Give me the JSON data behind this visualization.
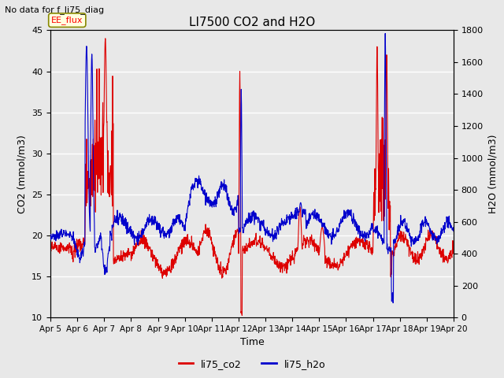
{
  "title": "LI7500 CO2 and H2O",
  "top_left_text": "No data for f_li75_diag",
  "xlabel": "Time",
  "ylabel_left": "CO2 (mmol/m3)",
  "ylabel_right": "H2O (mmol/m3)",
  "ylim_left": [
    10,
    45
  ],
  "ylim_right": [
    0,
    1800
  ],
  "yticks_left": [
    10,
    15,
    20,
    25,
    30,
    35,
    40,
    45
  ],
  "yticks_right": [
    0,
    200,
    400,
    600,
    800,
    1000,
    1200,
    1400,
    1600,
    1800
  ],
  "xticklabels": [
    "Apr 5",
    "Apr 6",
    "Apr 7",
    "Apr 8",
    "Apr 9",
    "Apr 10",
    "Apr 11",
    "Apr 12",
    "Apr 13",
    "Apr 14",
    "Apr 15",
    "Apr 16",
    "Apr 17",
    "Apr 18",
    "Apr 19",
    "Apr 20"
  ],
  "co2_color": "#DD0000",
  "h2o_color": "#0000CC",
  "legend_label_co2": "li75_co2",
  "legend_label_h2o": "li75_h2o",
  "annotation_text": "EE_flux",
  "plot_bg_color": "#E8E8E8",
  "fig_bg_color": "#E8E8E8",
  "grid_color": "#FFFFFF",
  "linewidth": 0.8,
  "n_days": 15,
  "n_per_day": 96
}
